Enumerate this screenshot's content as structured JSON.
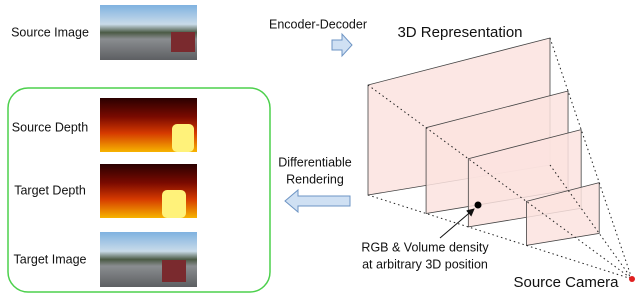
{
  "labels": {
    "source_image": "Source Image",
    "encoder_decoder": "Encoder-Decoder",
    "representation": "3D Representation",
    "source_depth": "Source Depth",
    "target_depth": "Target Depth",
    "target_image": "Target Image",
    "rendering": [
      "Differentiable",
      "Rendering"
    ],
    "annotation": [
      "RGB & Volume density",
      "at arbitrary 3D position"
    ],
    "camera": "Source Camera"
  }
}
